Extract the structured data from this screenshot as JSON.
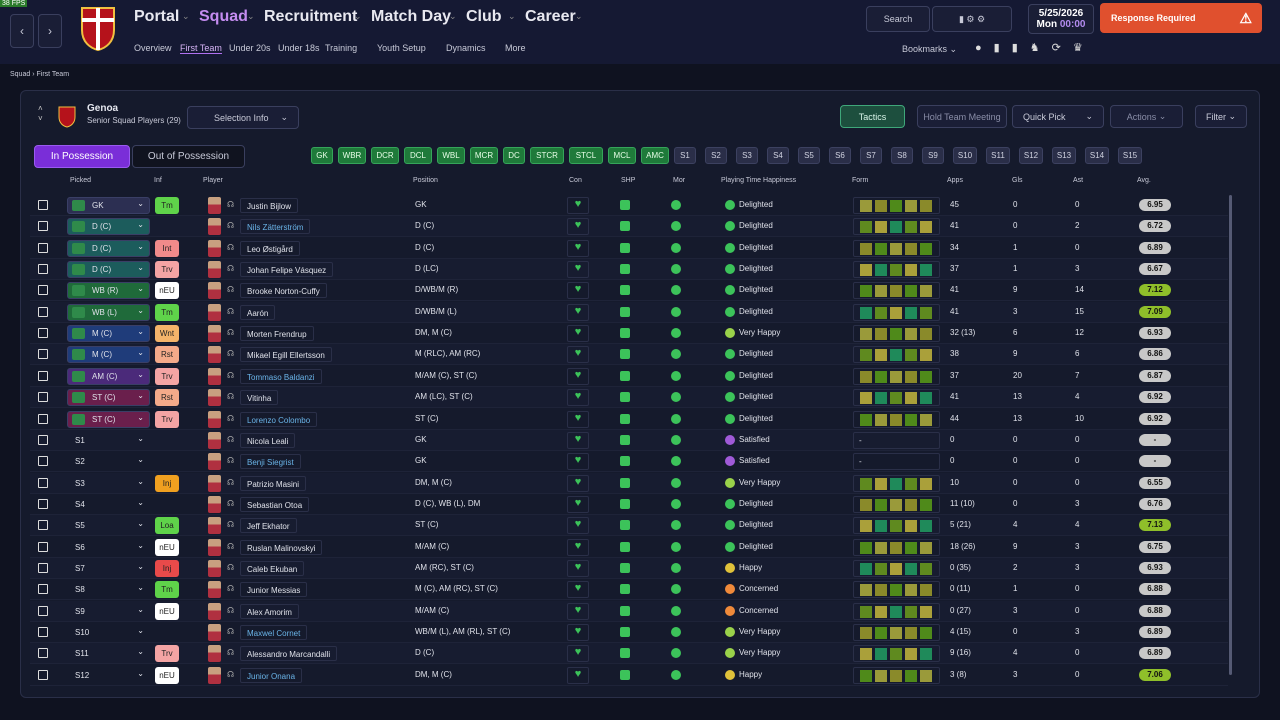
{
  "fps": "38 FPS",
  "nav": {
    "main": [
      "Portal",
      "Squad",
      "Recruitment",
      "Match Day",
      "Club",
      "Career"
    ],
    "sub": [
      "Overview",
      "First Team",
      "Under 20s",
      "Under 18s",
      "Training",
      "Youth Setup",
      "Dynamics",
      "More"
    ]
  },
  "search": "Search",
  "date": {
    "date": "5/25/2026",
    "day": "Mon",
    "time": "00:00"
  },
  "alert": "Response Required",
  "bookmarks": "Bookmarks",
  "breadcrumb": [
    "Squad",
    "First Team"
  ],
  "team": {
    "name": "Genoa",
    "subtitle": "Senior Squad Players (29)"
  },
  "buttons": {
    "selection_info": "Selection Info",
    "tactics": "Tactics",
    "meeting": "Hold Team Meeting",
    "quick_pick": "Quick Pick",
    "actions": "Actions",
    "filter": "Filter"
  },
  "tabs": [
    "In Possession",
    "Out of Possession"
  ],
  "slots": {
    "starting": [
      "GK",
      "WBR",
      "DCR",
      "DCL",
      "WBL",
      "MCR",
      "DC",
      "STCR",
      "STCL",
      "MCL",
      "AMC"
    ],
    "subs": [
      "S1",
      "S2",
      "S3",
      "S4",
      "S5",
      "S6",
      "S7",
      "S8",
      "S9",
      "S10",
      "S11",
      "S12",
      "S13",
      "S14",
      "S15"
    ]
  },
  "table": {
    "headers": [
      "Picked",
      "Inf",
      "Player",
      "Position",
      "Con",
      "SHP",
      "Mor",
      "Playing Time Happiness",
      "Form",
      "Apps",
      "Gls",
      "Ast",
      "Avg."
    ],
    "rows": [
      {
        "picked": "GK",
        "picked_color": "#2c2f52",
        "inf": "Tm",
        "inf_color": "#5fd34a",
        "player": "Justin Bijlow",
        "position": "GK",
        "happiness": "Delighted",
        "happiness_color": "#3cc35a",
        "apps": 45,
        "gls": 0,
        "ast": 0,
        "avg": 6.95
      },
      {
        "picked": "D (C)",
        "picked_color": "#1c5c5c",
        "player": "Nils Zätterström",
        "name_color": "#6ab4e8",
        "position": "D (C)",
        "happiness": "Delighted",
        "happiness_color": "#3cc35a",
        "apps": 41,
        "gls": 0,
        "ast": 2,
        "avg": 6.72
      },
      {
        "picked": "D (C)",
        "picked_color": "#1c5c5c",
        "inf": "Int",
        "inf_color": "#f08a8a",
        "player": "Leo Østigård",
        "position": "D (C)",
        "happiness": "Delighted",
        "happiness_color": "#3cc35a",
        "apps": 34,
        "gls": 1,
        "ast": 0,
        "avg": 6.89
      },
      {
        "picked": "D (C)",
        "picked_color": "#1c5c5c",
        "inf": "Trv",
        "inf_color": "#f4a4a4",
        "player": "Johan Felipe Vásquez",
        "position": "D (LC)",
        "happiness": "Delighted",
        "happiness_color": "#3cc35a",
        "apps": 37,
        "gls": 1,
        "ast": 3,
        "avg": 6.67
      },
      {
        "picked": "WB (R)",
        "picked_color": "#1f6a3a",
        "inf": "nEU",
        "inf_color": "#ffffff",
        "player": "Brooke Norton-Cuffy",
        "position": "D/WB/M (R)",
        "happiness": "Delighted",
        "happiness_color": "#3cc35a",
        "apps": 41,
        "gls": 9,
        "ast": 14,
        "avg": 7.12,
        "avg_color": "#8fbf2a"
      },
      {
        "picked": "WB (L)",
        "picked_color": "#1f6a3a",
        "inf": "Tm",
        "inf_color": "#5fd34a",
        "player": "Aarón",
        "position": "D/WB/M (L)",
        "happiness": "Delighted",
        "happiness_color": "#3cc35a",
        "apps": 41,
        "gls": 3,
        "ast": 15,
        "avg": 7.09,
        "avg_color": "#8fbf2a"
      },
      {
        "picked": "M (C)",
        "picked_color": "#1f3c7a",
        "inf": "Wnt",
        "inf_color": "#f4b46a",
        "player": "Morten Frendrup",
        "position": "DM, M (C)",
        "happiness": "Very Happy",
        "happiness_color": "#9ad24a",
        "apps": "32 (13)",
        "gls": 6,
        "ast": 12,
        "avg": 6.93
      },
      {
        "picked": "M (C)",
        "picked_color": "#1f3c7a",
        "inf": "Rst",
        "inf_color": "#f4aa8a",
        "player": "Mikael Egill Ellertsson",
        "position": "M (RLC), AM (RC)",
        "happiness": "Delighted",
        "happiness_color": "#3cc35a",
        "apps": 38,
        "gls": 9,
        "ast": 6,
        "avg": 6.86
      },
      {
        "picked": "AM (C)",
        "picked_color": "#4b2a7a",
        "inf": "Trv",
        "inf_color": "#f4a4a4",
        "player": "Tommaso Baldanzi",
        "name_color": "#6ab4e8",
        "position": "M/AM (C), ST (C)",
        "happiness": "Delighted",
        "happiness_color": "#3cc35a",
        "apps": 37,
        "gls": 20,
        "ast": 7,
        "avg": 6.87
      },
      {
        "picked": "ST (C)",
        "picked_color": "#6a1f4c",
        "inf": "Rst",
        "inf_color": "#f4aa8a",
        "player": "Vitinha",
        "position": "AM (LC), ST (C)",
        "happiness": "Delighted",
        "happiness_color": "#3cc35a",
        "apps": 41,
        "gls": 13,
        "ast": 4,
        "avg": 6.92
      },
      {
        "picked": "ST (C)",
        "picked_color": "#6a1f4c",
        "inf": "Trv",
        "inf_color": "#f4a4a4",
        "player": "Lorenzo Colombo",
        "name_color": "#6ab4e8",
        "position": "ST (C)",
        "happiness": "Delighted",
        "happiness_color": "#3cc35a",
        "apps": 44,
        "gls": 13,
        "ast": 10,
        "avg": 6.92
      },
      {
        "picked": "S1",
        "player": "Nicola Leali",
        "position": "GK",
        "happiness": "Satisfied",
        "happiness_color": "#a05ad8",
        "form": "-",
        "apps": 0,
        "gls": 0,
        "ast": 0,
        "avg": "-"
      },
      {
        "picked": "S2",
        "player": "Benji Siegrist",
        "name_color": "#6ab4e8",
        "position": "GK",
        "happiness": "Satisfied",
        "happiness_color": "#a05ad8",
        "form": "-",
        "apps": 0,
        "gls": 0,
        "ast": 0,
        "avg": "-"
      },
      {
        "picked": "S3",
        "inf": "Inj",
        "inf_color": "#f0a020",
        "player": "Patrizio Masini",
        "position": "DM, M (C)",
        "happiness": "Very Happy",
        "happiness_color": "#9ad24a",
        "apps": 10,
        "gls": 0,
        "ast": 0,
        "avg": 6.55
      },
      {
        "picked": "S4",
        "player": "Sebastian Otoa",
        "position": "D (C), WB (L), DM",
        "happiness": "Delighted",
        "happiness_color": "#3cc35a",
        "apps": "11 (10)",
        "gls": 0,
        "ast": 3,
        "avg": 6.76
      },
      {
        "picked": "S5",
        "inf": "Loa",
        "inf_color": "#5fd34a",
        "player": "Jeff Ekhator",
        "position": "ST (C)",
        "happiness": "Delighted",
        "happiness_color": "#3cc35a",
        "apps": "5 (21)",
        "gls": 4,
        "ast": 4,
        "avg": 7.13,
        "avg_color": "#8fbf2a"
      },
      {
        "picked": "S6",
        "inf": "nEU",
        "inf_color": "#ffffff",
        "player": "Ruslan Malinovskyi",
        "position": "M/AM (C)",
        "happiness": "Delighted",
        "happiness_color": "#3cc35a",
        "apps": "18 (26)",
        "gls": 9,
        "ast": 3,
        "avg": 6.75
      },
      {
        "picked": "S7",
        "inf": "Inj",
        "inf_color": "#e84a4a",
        "player": "Caleb Ekuban",
        "position": "AM (RC), ST (C)",
        "happiness": "Happy",
        "happiness_color": "#e0c23a",
        "apps": "0 (35)",
        "gls": 2,
        "ast": 3,
        "avg": 6.93
      },
      {
        "picked": "S8",
        "inf": "Tm",
        "inf_color": "#5fd34a",
        "player": "Junior Messias",
        "position": "M (C), AM (RC), ST (C)",
        "happiness": "Concerned",
        "happiness_color": "#f08a3a",
        "apps": "0 (11)",
        "gls": 1,
        "ast": 0,
        "avg": 6.88
      },
      {
        "picked": "S9",
        "inf": "nEU",
        "inf_color": "#ffffff",
        "player": "Alex Amorim",
        "position": "M/AM (C)",
        "happiness": "Concerned",
        "happiness_color": "#f08a3a",
        "apps": "0 (27)",
        "gls": 3,
        "ast": 0,
        "avg": 6.88
      },
      {
        "picked": "S10",
        "player": "Maxwel Cornet",
        "name_color": "#6ab4e8",
        "position": "WB/M (L), AM (RL), ST (C)",
        "happiness": "Very Happy",
        "happiness_color": "#9ad24a",
        "apps": "4 (15)",
        "gls": 0,
        "ast": 3,
        "avg": 6.89
      },
      {
        "picked": "S11",
        "inf": "Trv",
        "inf_color": "#f4a4a4",
        "player": "Alessandro Marcandalli",
        "position": "D (C)",
        "happiness": "Very Happy",
        "happiness_color": "#9ad24a",
        "apps": "9 (16)",
        "gls": 4,
        "ast": 0,
        "avg": 6.89
      },
      {
        "picked": "S12",
        "inf": "nEU",
        "inf_color": "#ffffff",
        "player": "Junior Onana",
        "name_color": "#6ab4e8",
        "position": "DM, M (C)",
        "happiness": "Happy",
        "happiness_color": "#e0c23a",
        "apps": "3 (8)",
        "gls": 3,
        "ast": 0,
        "avg": 7.06,
        "avg_color": "#8fbf2a"
      }
    ]
  }
}
